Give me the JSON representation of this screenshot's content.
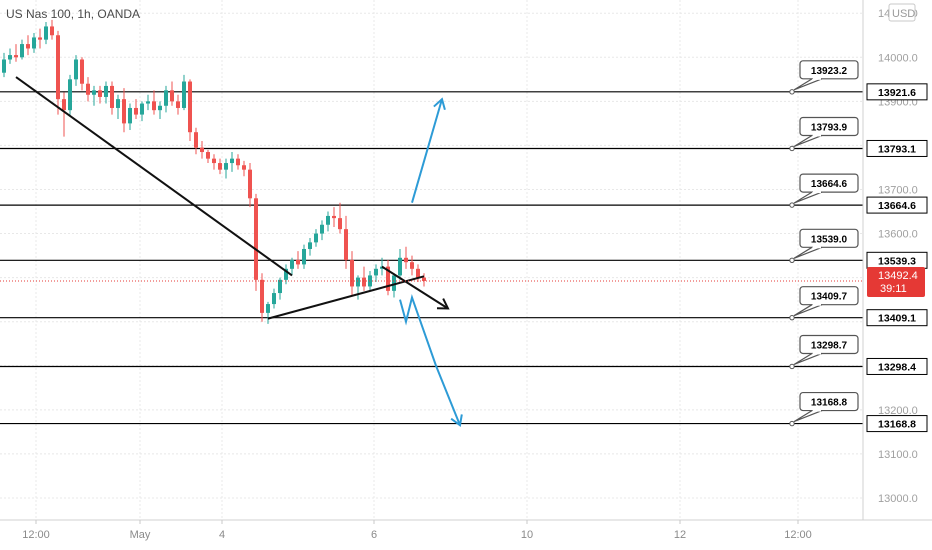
{
  "chart_data": {
    "type": "candlestick",
    "legend": "US Nas 100, 1h, OANDA",
    "currency": "USD",
    "y_axis": {
      "min": 12950,
      "max": 14130,
      "ticks": [
        {
          "value": 14100,
          "label": "14100.0"
        },
        {
          "value": 14000,
          "label": "14000.0"
        },
        {
          "value": 13900,
          "label": "13900.0"
        },
        {
          "value": 13800,
          "label": "13800.0"
        },
        {
          "value": 13700,
          "label": "13700.0"
        },
        {
          "value": 13600,
          "label": "13600.0"
        },
        {
          "value": 13500,
          "label": "13500.0"
        },
        {
          "value": 13400,
          "label": "13400.0"
        },
        {
          "value": 13300,
          "label": "13300.0"
        },
        {
          "value": 13200,
          "label": "13200.0"
        },
        {
          "value": 13100,
          "label": "13100.0"
        },
        {
          "value": 13000,
          "label": "13000.0"
        }
      ]
    },
    "x_axis": {
      "ticks": [
        "12:00",
        "May",
        "4",
        "6",
        "10",
        "12",
        "12:00"
      ]
    },
    "levels": [
      {
        "price": 13921.6,
        "axis_label": "13921.6",
        "callout": "13923.2"
      },
      {
        "price": 13793.1,
        "axis_label": "13793.1",
        "callout": "13793.9"
      },
      {
        "price": 13664.6,
        "axis_label": "13664.6",
        "callout": "13664.6"
      },
      {
        "price": 13539.3,
        "axis_label": "13539.3",
        "callout": "13539.0"
      },
      {
        "price": 13409.1,
        "axis_label": "13409.1",
        "callout": "13409.7"
      },
      {
        "price": 13298.4,
        "axis_label": "13298.4",
        "callout": "13298.7"
      },
      {
        "price": 13168.8,
        "axis_label": "13168.8",
        "callout": "13168.8"
      }
    ],
    "current_price": {
      "value": 13492.4,
      "label": "13492.4",
      "countdown": "39:11"
    },
    "candles": [
      [
        13965,
        14010,
        13955,
        13995
      ],
      [
        13995,
        14020,
        13985,
        14005
      ],
      [
        14005,
        14030,
        13990,
        14000
      ],
      [
        14000,
        14040,
        13995,
        14030
      ],
      [
        14030,
        14050,
        14005,
        14020
      ],
      [
        14020,
        14055,
        14010,
        14045
      ],
      [
        14045,
        14065,
        14020,
        14040
      ],
      [
        14040,
        14080,
        14030,
        14070
      ],
      [
        14070,
        14085,
        14040,
        14050
      ],
      [
        14050,
        14060,
        13870,
        13905
      ],
      [
        13905,
        13920,
        13820,
        13880
      ],
      [
        13880,
        13960,
        13865,
        13950
      ],
      [
        13950,
        14005,
        13935,
        13995
      ],
      [
        13995,
        14000,
        13925,
        13940
      ],
      [
        13940,
        13955,
        13900,
        13915
      ],
      [
        13915,
        13935,
        13890,
        13925
      ],
      [
        13925,
        13935,
        13895,
        13910
      ],
      [
        13910,
        13945,
        13895,
        13935
      ],
      [
        13935,
        13945,
        13870,
        13885
      ],
      [
        13885,
        13915,
        13860,
        13905
      ],
      [
        13905,
        13930,
        13830,
        13850
      ],
      [
        13850,
        13895,
        13835,
        13885
      ],
      [
        13885,
        13905,
        13860,
        13870
      ],
      [
        13870,
        13900,
        13855,
        13895
      ],
      [
        13895,
        13915,
        13880,
        13900
      ],
      [
        13900,
        13925,
        13870,
        13880
      ],
      [
        13880,
        13900,
        13860,
        13890
      ],
      [
        13890,
        13935,
        13875,
        13925
      ],
      [
        13925,
        13945,
        13890,
        13900
      ],
      [
        13900,
        13915,
        13870,
        13885
      ],
      [
        13885,
        13960,
        13880,
        13945
      ],
      [
        13945,
        13950,
        13810,
        13830
      ],
      [
        13830,
        13840,
        13780,
        13795
      ],
      [
        13795,
        13810,
        13770,
        13785
      ],
      [
        13785,
        13790,
        13760,
        13770
      ],
      [
        13770,
        13780,
        13745,
        13760
      ],
      [
        13760,
        13770,
        13735,
        13745
      ],
      [
        13745,
        13770,
        13725,
        13760
      ],
      [
        13760,
        13785,
        13740,
        13770
      ],
      [
        13770,
        13780,
        13745,
        13755
      ],
      [
        13755,
        13765,
        13730,
        13745
      ],
      [
        13745,
        13760,
        13660,
        13680
      ],
      [
        13680,
        13690,
        13470,
        13495
      ],
      [
        13495,
        13510,
        13400,
        13420
      ],
      [
        13420,
        13445,
        13395,
        13440
      ],
      [
        13440,
        13475,
        13430,
        13465
      ],
      [
        13465,
        13500,
        13450,
        13495
      ],
      [
        13495,
        13530,
        13485,
        13520
      ],
      [
        13520,
        13545,
        13505,
        13540
      ],
      [
        13540,
        13560,
        13520,
        13530
      ],
      [
        13530,
        13575,
        13520,
        13565
      ],
      [
        13565,
        13590,
        13550,
        13580
      ],
      [
        13580,
        13610,
        13570,
        13600
      ],
      [
        13600,
        13630,
        13585,
        13620
      ],
      [
        13620,
        13650,
        13605,
        13640
      ],
      [
        13640,
        13660,
        13615,
        13635
      ],
      [
        13635,
        13670,
        13600,
        13610
      ],
      [
        13610,
        13640,
        13520,
        13540
      ],
      [
        13540,
        13560,
        13460,
        13480
      ],
      [
        13480,
        13505,
        13450,
        13500
      ],
      [
        13500,
        13525,
        13470,
        13480
      ],
      [
        13480,
        13515,
        13470,
        13505
      ],
      [
        13505,
        13530,
        13490,
        13520
      ],
      [
        13520,
        13545,
        13505,
        13525
      ],
      [
        13525,
        13540,
        13460,
        13470
      ],
      [
        13470,
        13510,
        13455,
        13505
      ],
      [
        13505,
        13565,
        13495,
        13545
      ],
      [
        13545,
        13570,
        13520,
        13535
      ],
      [
        13535,
        13550,
        13505,
        13520
      ],
      [
        13520,
        13530,
        13490,
        13500
      ],
      [
        13500,
        13510,
        13480,
        13492.4
      ]
    ]
  },
  "annotations": {
    "trendlines": [
      {
        "from": {
          "candle": 2,
          "price": 13955
        },
        "to": {
          "candle": 48,
          "price": 13505
        }
      },
      {
        "from": {
          "candle": 44,
          "price": 13407
        },
        "to": {
          "candle": 70,
          "price": 13503
        }
      }
    ],
    "arrows": [
      {
        "color": "#111111",
        "points": [
          {
            "candle": 63,
            "price": 13525
          },
          {
            "candle": 74,
            "price": 13430
          }
        ]
      },
      {
        "color": "#2d9bd6",
        "points": [
          {
            "candle": 68,
            "price": 13670
          },
          {
            "candle": 73,
            "price": 13905
          }
        ]
      },
      {
        "color": "#2d9bd6",
        "points": [
          {
            "candle": 66,
            "price": 13450
          },
          {
            "candle": 67,
            "price": 13400
          },
          {
            "candle": 68,
            "price": 13455
          },
          {
            "candle": 72,
            "price": 13300
          },
          {
            "candle": 76,
            "price": 13165
          }
        ]
      }
    ]
  },
  "colors": {
    "up": "#26a69a",
    "down": "#ef5350",
    "level": "#000000",
    "current": "#e53935",
    "grid": "#e8e8e8",
    "axis_text": "#a0a0a0",
    "blue_arrow": "#2d9bd6"
  }
}
